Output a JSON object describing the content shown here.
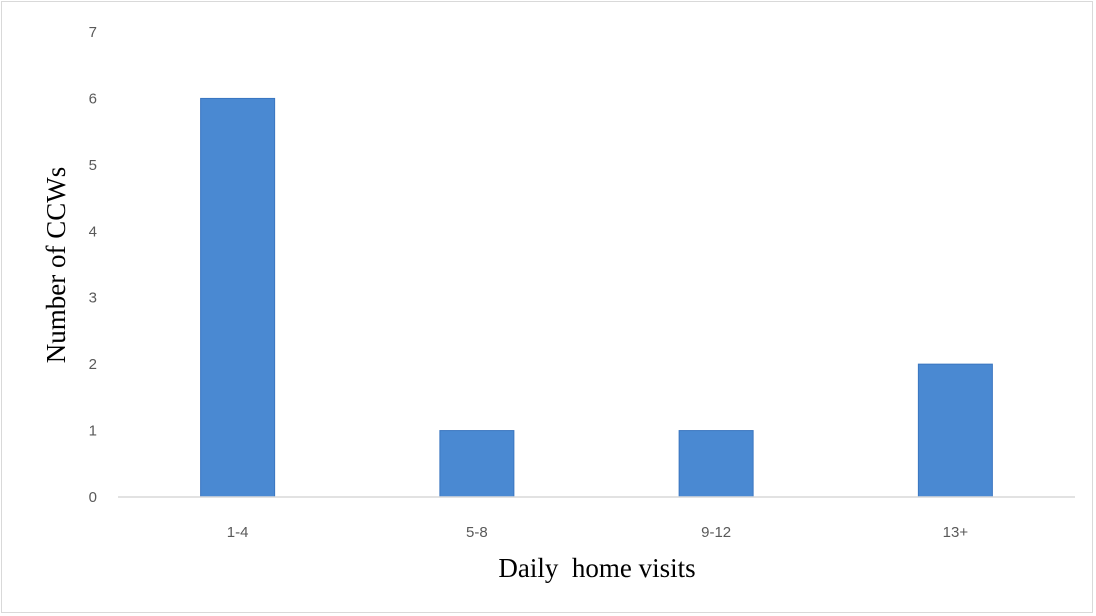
{
  "chart_data": {
    "type": "bar",
    "title": "",
    "xlabel": "Daily  home visits",
    "ylabel": "Number of CCWs",
    "categories": [
      "1-4",
      "5-8",
      "9-12",
      "13+"
    ],
    "values": [
      6,
      1,
      1,
      2
    ],
    "ylim": [
      0,
      7
    ],
    "yticks": [
      0,
      1,
      2,
      3,
      4,
      5,
      6,
      7
    ],
    "grid": false,
    "legend": "none",
    "colors": {
      "bar": "#4a89d2",
      "bar_edge": "#3a76c0",
      "axis": "#d9d9d9",
      "tick_text": "#595959"
    }
  }
}
